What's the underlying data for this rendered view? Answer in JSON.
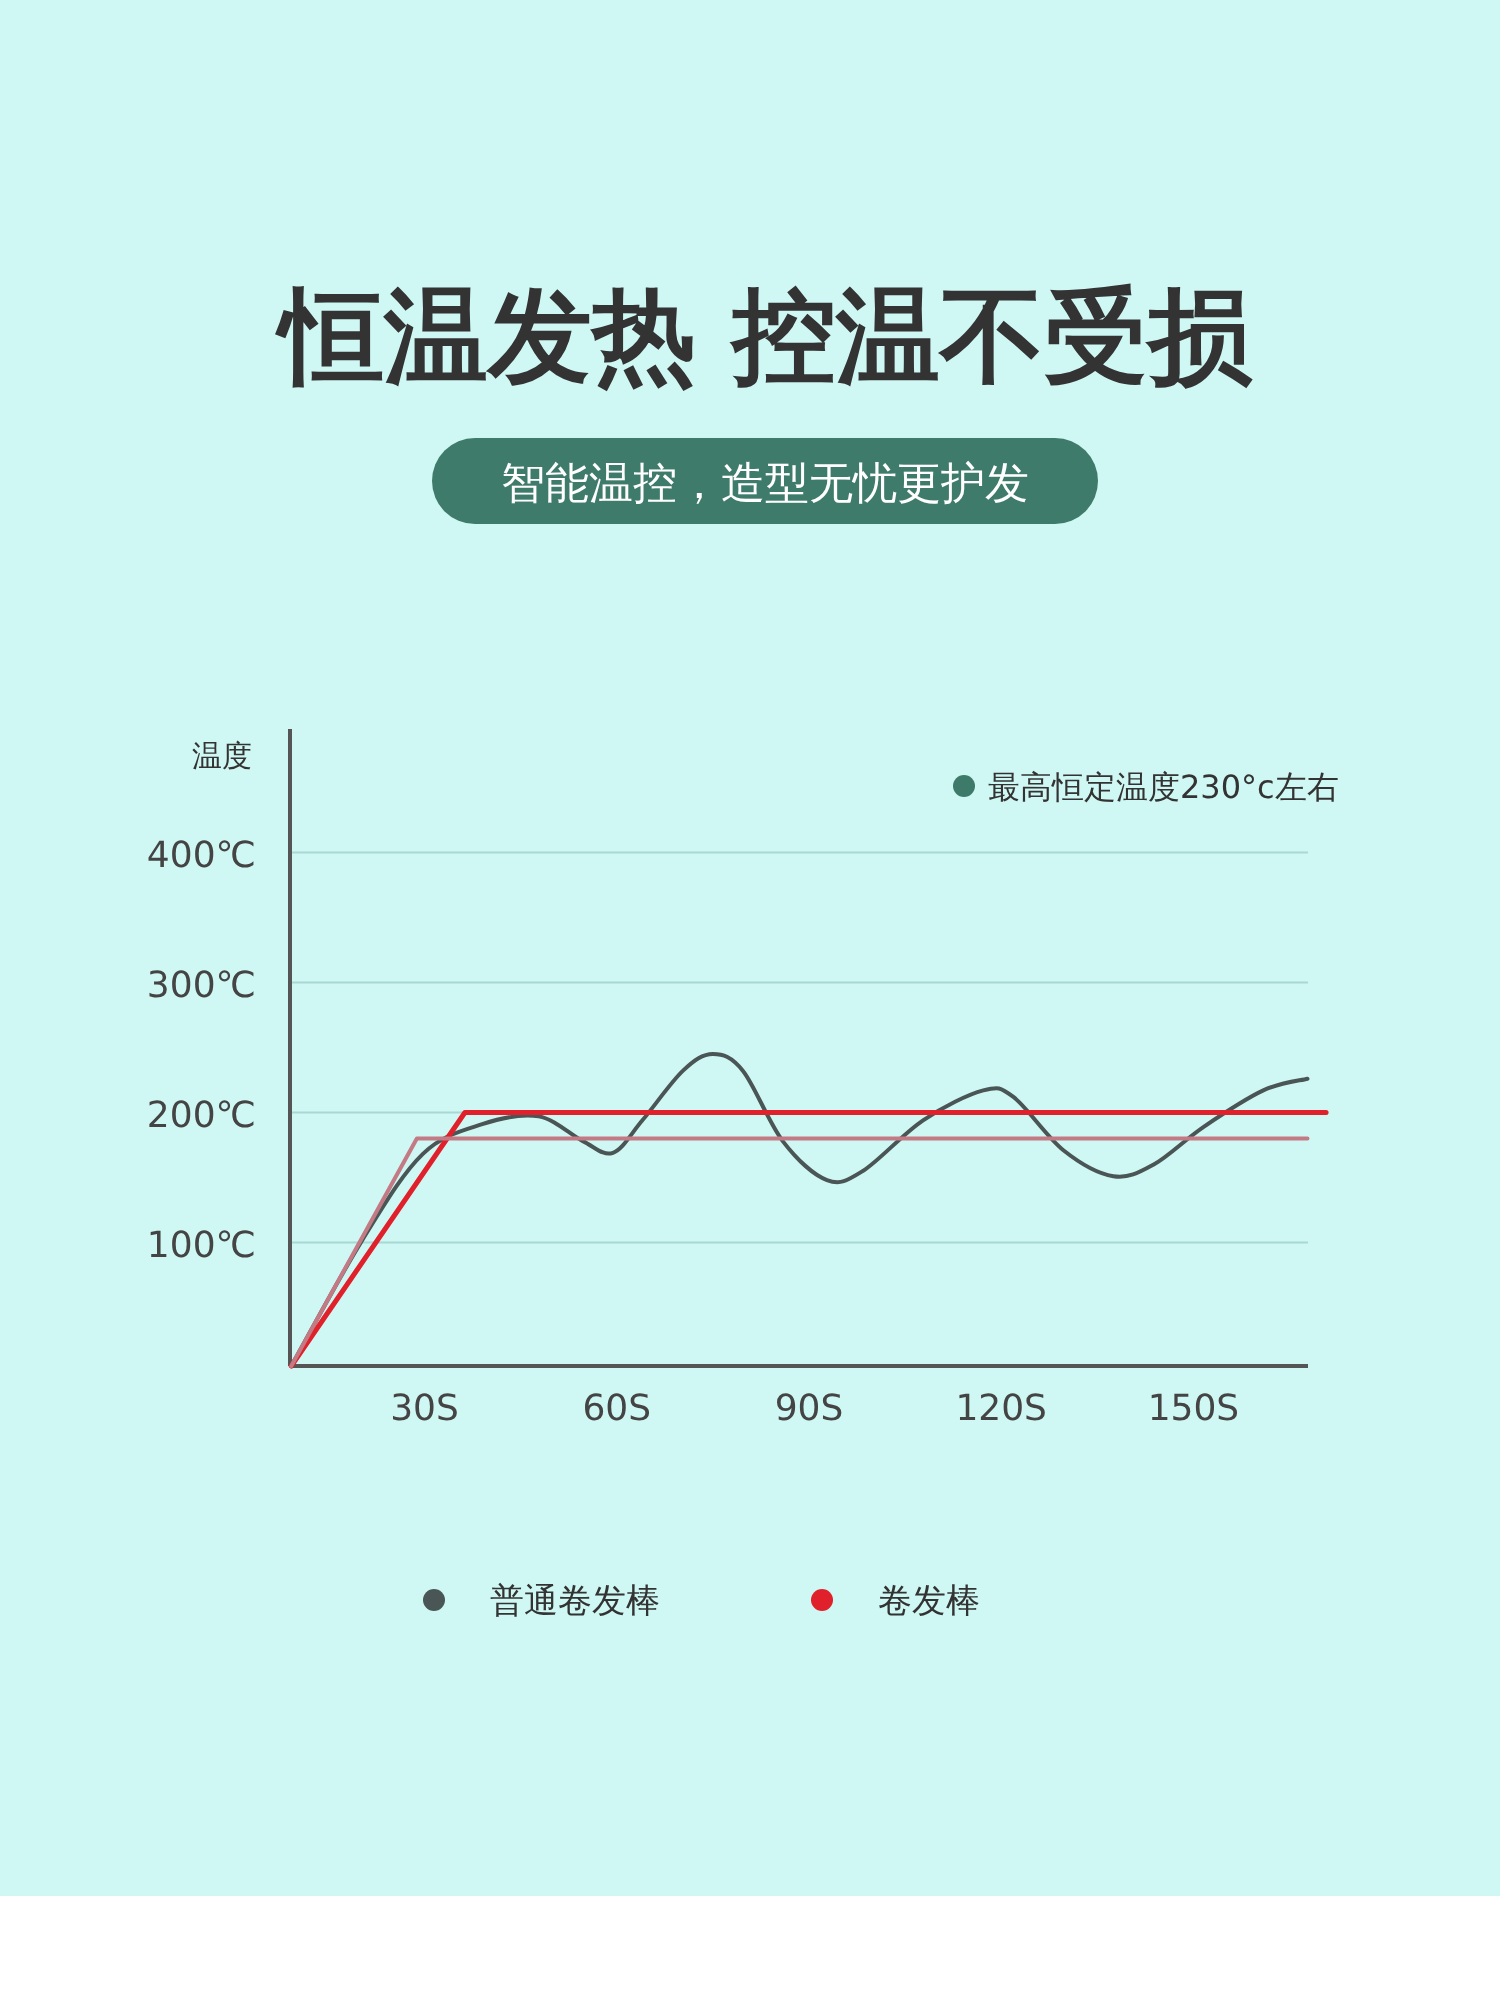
{
  "chart_data": {
    "type": "line",
    "title": "恒温发热 控温不受损",
    "subtitle": "智能温控，造型无忧更护发",
    "ylabel": "温度",
    "annotations": [
      "最高恒定温度230°c左右"
    ],
    "xlim": [
      9,
      171
    ],
    "ylim": [
      5,
      495
    ],
    "xticks": [
      {
        "value": 30,
        "label": "30S"
      },
      {
        "value": 60,
        "label": "60S"
      },
      {
        "value": 90,
        "label": "90S"
      },
      {
        "value": 120,
        "label": "120S"
      },
      {
        "value": 150,
        "label": "150S"
      }
    ],
    "yticks": [
      {
        "value": 100,
        "label": "100℃"
      },
      {
        "value": 200,
        "label": "200℃"
      },
      {
        "value": 300,
        "label": "300℃"
      },
      {
        "value": 400,
        "label": "400℃"
      }
    ],
    "grid": "y",
    "legend": "bottom",
    "marker": "none",
    "line_style": "solid",
    "series": [
      {
        "name": "普通卷发棒",
        "color": "#4a5656",
        "x": [
          9.2,
          20.3,
          29.7,
          39,
          47.8,
          54.7,
          59.4,
          64,
          70.3,
          75,
          79.7,
          85.9,
          92.8,
          98.4,
          107.8,
          117.2,
          121.9,
          129.7,
          137.5,
          143.8,
          151.6,
          160.9,
          167.8
        ],
        "values": [
          5,
          102,
          168,
          191,
          197,
          178,
          169,
          194,
          232,
          245,
          232,
          178,
          148,
          155,
          194,
          217,
          212,
          171,
          151,
          160,
          189,
          217,
          226
        ]
      },
      {
        "name": "卷发棒",
        "color": "#e0202a",
        "x": [
          9.2,
          36.3,
          170.7
        ],
        "values": [
          5,
          200,
          200
        ]
      },
      {
        "color": "#c47a84",
        "x": [
          9.2,
          28.8,
          167.8
        ],
        "values": [
          5,
          180,
          180
        ]
      }
    ]
  }
}
